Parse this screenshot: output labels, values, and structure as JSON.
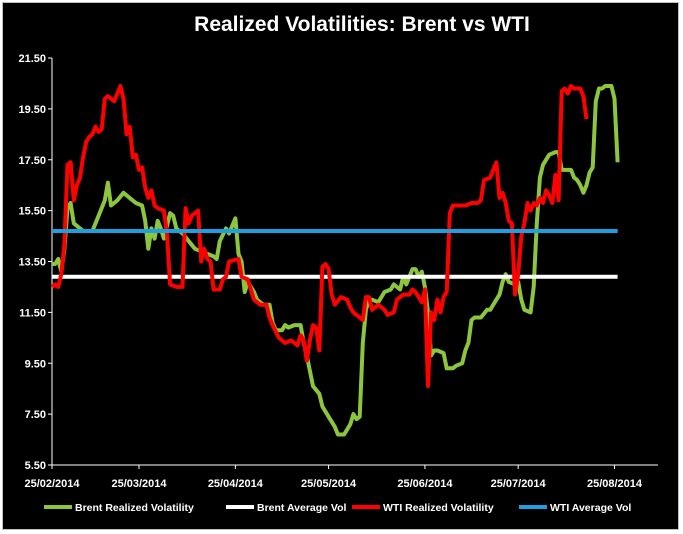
{
  "chart_data": {
    "type": "line",
    "title": "Realized Volatilities: Brent vs WTI",
    "xlabel": "",
    "ylabel": "",
    "ylim": [
      5.5,
      21.5
    ],
    "yticks": [
      "5.50",
      "7.50",
      "9.50",
      "11.50",
      "13.50",
      "15.50",
      "17.50",
      "19.50",
      "21.50"
    ],
    "xlim": [
      0,
      195
    ],
    "xticks": [
      {
        "x": 0,
        "label": "25/02/2014"
      },
      {
        "x": 28,
        "label": "25/03/2014"
      },
      {
        "x": 59,
        "label": "25/04/2014"
      },
      {
        "x": 89,
        "label": "25/05/2014"
      },
      {
        "x": 120,
        "label": "25/06/2014"
      },
      {
        "x": 150,
        "label": "25/07/2014"
      },
      {
        "x": 181,
        "label": "25/08/2014"
      }
    ],
    "legend_position": "bottom",
    "grid": false,
    "background": "#000000",
    "text_color": "#ffffff",
    "series": [
      {
        "name": "Brent Realized Volatility",
        "color": "#8cc63f",
        "points": [
          [
            0,
            13.4
          ],
          [
            1,
            13.4
          ],
          [
            2,
            13.6
          ],
          [
            3,
            13.1
          ],
          [
            4,
            14.0
          ],
          [
            5,
            15.6
          ],
          [
            6,
            15.8
          ],
          [
            7,
            15.0
          ],
          [
            9,
            14.8
          ],
          [
            10,
            14.7
          ],
          [
            13,
            14.7
          ],
          [
            15,
            15.3
          ],
          [
            17,
            15.9
          ],
          [
            18,
            16.6
          ],
          [
            19,
            15.7
          ],
          [
            21,
            15.9
          ],
          [
            23,
            16.2
          ],
          [
            25,
            16.0
          ],
          [
            27,
            15.8
          ],
          [
            29,
            15.7
          ],
          [
            30,
            15.1
          ],
          [
            31,
            14.0
          ],
          [
            32,
            14.8
          ],
          [
            33,
            14.4
          ],
          [
            34,
            15.1
          ],
          [
            35,
            14.8
          ],
          [
            36,
            14.4
          ],
          [
            38,
            15.4
          ],
          [
            39,
            15.3
          ],
          [
            40,
            14.8
          ],
          [
            42,
            14.6
          ],
          [
            44,
            14.3
          ],
          [
            46,
            14.0
          ],
          [
            48,
            13.9
          ],
          [
            50,
            13.8
          ],
          [
            52,
            13.7
          ],
          [
            53,
            13.6
          ],
          [
            54,
            14.3
          ],
          [
            56,
            14.8
          ],
          [
            57,
            14.6
          ],
          [
            59,
            15.2
          ],
          [
            60,
            13.8
          ],
          [
            61,
            13.5
          ],
          [
            62,
            12.3
          ],
          [
            63,
            12.7
          ],
          [
            65,
            12.3
          ],
          [
            66,
            12.0
          ],
          [
            68,
            11.8
          ],
          [
            70,
            11.8
          ],
          [
            71,
            11.1
          ],
          [
            72,
            10.8
          ],
          [
            74,
            10.8
          ],
          [
            75,
            11.0
          ],
          [
            76,
            10.9
          ],
          [
            78,
            11.0
          ],
          [
            80,
            11.0
          ],
          [
            81,
            10.3
          ],
          [
            82,
            9.8
          ],
          [
            83,
            9.2
          ],
          [
            84,
            8.6
          ],
          [
            86,
            8.3
          ],
          [
            87,
            7.8
          ],
          [
            89,
            7.4
          ],
          [
            91,
            7.0
          ],
          [
            92,
            6.7
          ],
          [
            94,
            6.7
          ],
          [
            95,
            6.9
          ],
          [
            96,
            7.1
          ],
          [
            97,
            7.5
          ],
          [
            98,
            7.3
          ],
          [
            99,
            7.4
          ],
          [
            100,
            10.3
          ],
          [
            101,
            11.6
          ],
          [
            102,
            12.0
          ],
          [
            103,
            12.0
          ],
          [
            105,
            11.9
          ],
          [
            107,
            12.3
          ],
          [
            109,
            12.4
          ],
          [
            110,
            12.6
          ],
          [
            112,
            12.4
          ],
          [
            113,
            12.9
          ],
          [
            114,
            12.6
          ],
          [
            116,
            13.2
          ],
          [
            117,
            13.2
          ],
          [
            118,
            12.9
          ],
          [
            119,
            13.1
          ],
          [
            120,
            12.5
          ],
          [
            121,
            11.5
          ],
          [
            122,
            9.8
          ],
          [
            123,
            10.0
          ],
          [
            124,
            10.0
          ],
          [
            126,
            9.9
          ],
          [
            127,
            9.3
          ],
          [
            129,
            9.3
          ],
          [
            130,
            9.4
          ],
          [
            132,
            9.5
          ],
          [
            133,
            10.0
          ],
          [
            134,
            10.3
          ],
          [
            135,
            11.2
          ],
          [
            136,
            11.3
          ],
          [
            138,
            11.3
          ],
          [
            140,
            11.6
          ],
          [
            141,
            11.6
          ],
          [
            142,
            11.8
          ],
          [
            144,
            12.2
          ],
          [
            145,
            12.7
          ],
          [
            146,
            13.0
          ],
          [
            147,
            12.7
          ],
          [
            149,
            12.6
          ],
          [
            150,
            12.7
          ],
          [
            151,
            12.0
          ],
          [
            152,
            11.6
          ],
          [
            154,
            11.5
          ],
          [
            155,
            12.5
          ],
          [
            156,
            15.0
          ],
          [
            157,
            16.8
          ],
          [
            158,
            17.3
          ],
          [
            160,
            17.7
          ],
          [
            162,
            17.8
          ],
          [
            163,
            17.8
          ],
          [
            164,
            17.1
          ],
          [
            166,
            17.1
          ],
          [
            167,
            17.1
          ],
          [
            168,
            16.8
          ],
          [
            169,
            16.7
          ],
          [
            170,
            16.5
          ],
          [
            171,
            16.2
          ],
          [
            172,
            16.5
          ],
          [
            173,
            17.0
          ],
          [
            174,
            17.2
          ],
          [
            175,
            19.8
          ],
          [
            176,
            20.3
          ],
          [
            177,
            20.3
          ],
          [
            178,
            20.4
          ],
          [
            179,
            20.4
          ],
          [
            180,
            20.4
          ],
          [
            181,
            19.9
          ],
          [
            182,
            17.4
          ]
        ]
      },
      {
        "name": "Brent Average Vol",
        "color": "#ffffff",
        "points": [
          [
            0,
            12.9
          ],
          [
            182,
            12.9
          ]
        ]
      },
      {
        "name": "WTI Realized Volatility",
        "color": "#ff0000",
        "points": [
          [
            0,
            12.5
          ],
          [
            1,
            12.6
          ],
          [
            2,
            12.5
          ],
          [
            3,
            13.0
          ],
          [
            4,
            14.2
          ],
          [
            5,
            17.3
          ],
          [
            6,
            17.4
          ],
          [
            7,
            15.9
          ],
          [
            8,
            16.5
          ],
          [
            9,
            16.8
          ],
          [
            10,
            17.6
          ],
          [
            11,
            18.2
          ],
          [
            12,
            18.4
          ],
          [
            13,
            18.5
          ],
          [
            14,
            18.8
          ],
          [
            15,
            18.6
          ],
          [
            16,
            18.7
          ],
          [
            17,
            19.9
          ],
          [
            18,
            20.0
          ],
          [
            20,
            19.8
          ],
          [
            21,
            20.1
          ],
          [
            22,
            20.4
          ],
          [
            23,
            19.9
          ],
          [
            24,
            18.5
          ],
          [
            25,
            18.8
          ],
          [
            26,
            17.6
          ],
          [
            27,
            17.7
          ],
          [
            28,
            17.1
          ],
          [
            29,
            17.2
          ],
          [
            30,
            16.4
          ],
          [
            31,
            16.0
          ],
          [
            32,
            16.3
          ],
          [
            33,
            15.7
          ],
          [
            34,
            15.6
          ],
          [
            36,
            15.5
          ],
          [
            37,
            14.6
          ],
          [
            38,
            12.6
          ],
          [
            40,
            12.5
          ],
          [
            42,
            12.5
          ],
          [
            43,
            15.6
          ],
          [
            44,
            15.0
          ],
          [
            45,
            15.3
          ],
          [
            47,
            15.5
          ],
          [
            48,
            13.5
          ],
          [
            49,
            14.0
          ],
          [
            50,
            13.6
          ],
          [
            51,
            13.5
          ],
          [
            52,
            12.4
          ],
          [
            54,
            12.4
          ],
          [
            55,
            12.8
          ],
          [
            56,
            12.9
          ],
          [
            57,
            13.5
          ],
          [
            60,
            13.6
          ],
          [
            61,
            12.9
          ],
          [
            63,
            12.8
          ],
          [
            64,
            12.4
          ],
          [
            65,
            12.0
          ],
          [
            67,
            11.8
          ],
          [
            69,
            11.8
          ],
          [
            70,
            11.3
          ],
          [
            71,
            11.0
          ],
          [
            73,
            10.5
          ],
          [
            75,
            10.3
          ],
          [
            77,
            10.4
          ],
          [
            79,
            10.2
          ],
          [
            80,
            10.6
          ],
          [
            81,
            10.4
          ],
          [
            82,
            9.6
          ],
          [
            83,
            10.4
          ],
          [
            84,
            11.0
          ],
          [
            85,
            10.9
          ],
          [
            86,
            10.0
          ],
          [
            87,
            13.3
          ],
          [
            88,
            13.4
          ],
          [
            89,
            13.2
          ],
          [
            90,
            12.2
          ],
          [
            91,
            11.8
          ],
          [
            93,
            12.1
          ],
          [
            95,
            12.0
          ],
          [
            96,
            11.7
          ],
          [
            97,
            11.5
          ],
          [
            99,
            11.3
          ],
          [
            100,
            11.2
          ],
          [
            101,
            12.1
          ],
          [
            102,
            12.1
          ],
          [
            103,
            11.6
          ],
          [
            105,
            11.8
          ],
          [
            107,
            11.6
          ],
          [
            108,
            11.4
          ],
          [
            110,
            11.5
          ],
          [
            111,
            12.0
          ],
          [
            113,
            12.2
          ],
          [
            115,
            12.2
          ],
          [
            116,
            12.4
          ],
          [
            117,
            12.3
          ],
          [
            119,
            11.9
          ],
          [
            120,
            12.4
          ],
          [
            121,
            8.6
          ],
          [
            122,
            11.5
          ],
          [
            123,
            11.2
          ],
          [
            124,
            12.0
          ],
          [
            125,
            11.5
          ],
          [
            126,
            12.1
          ],
          [
            127,
            12.3
          ],
          [
            128,
            15.4
          ],
          [
            129,
            15.7
          ],
          [
            131,
            15.7
          ],
          [
            133,
            15.7
          ],
          [
            135,
            15.8
          ],
          [
            137,
            15.8
          ],
          [
            138,
            15.9
          ],
          [
            139,
            16.7
          ],
          [
            141,
            16.8
          ],
          [
            142,
            17.1
          ],
          [
            143,
            17.4
          ],
          [
            144,
            16.0
          ],
          [
            145,
            16.2
          ],
          [
            146,
            15.8
          ],
          [
            147,
            15.1
          ],
          [
            148,
            15.0
          ],
          [
            149,
            12.2
          ],
          [
            150,
            13.0
          ],
          [
            151,
            14.5
          ],
          [
            152,
            15.0
          ],
          [
            153,
            15.8
          ],
          [
            154,
            15.5
          ],
          [
            155,
            15.8
          ],
          [
            156,
            15.7
          ],
          [
            157,
            16.0
          ],
          [
            158,
            15.8
          ],
          [
            159,
            16.3
          ],
          [
            160,
            16.1
          ],
          [
            161,
            15.8
          ],
          [
            162,
            16.9
          ],
          [
            163,
            15.9
          ],
          [
            164,
            20.2
          ],
          [
            165,
            20.3
          ],
          [
            166,
            20.1
          ],
          [
            167,
            20.4
          ],
          [
            168,
            20.3
          ],
          [
            170,
            20.3
          ],
          [
            171,
            20.0
          ],
          [
            172,
            19.1
          ]
        ]
      },
      {
        "name": "WTI Average Vol",
        "color": "#1ea0e0",
        "points": [
          [
            0,
            14.7
          ],
          [
            182,
            14.7
          ]
        ]
      }
    ]
  }
}
